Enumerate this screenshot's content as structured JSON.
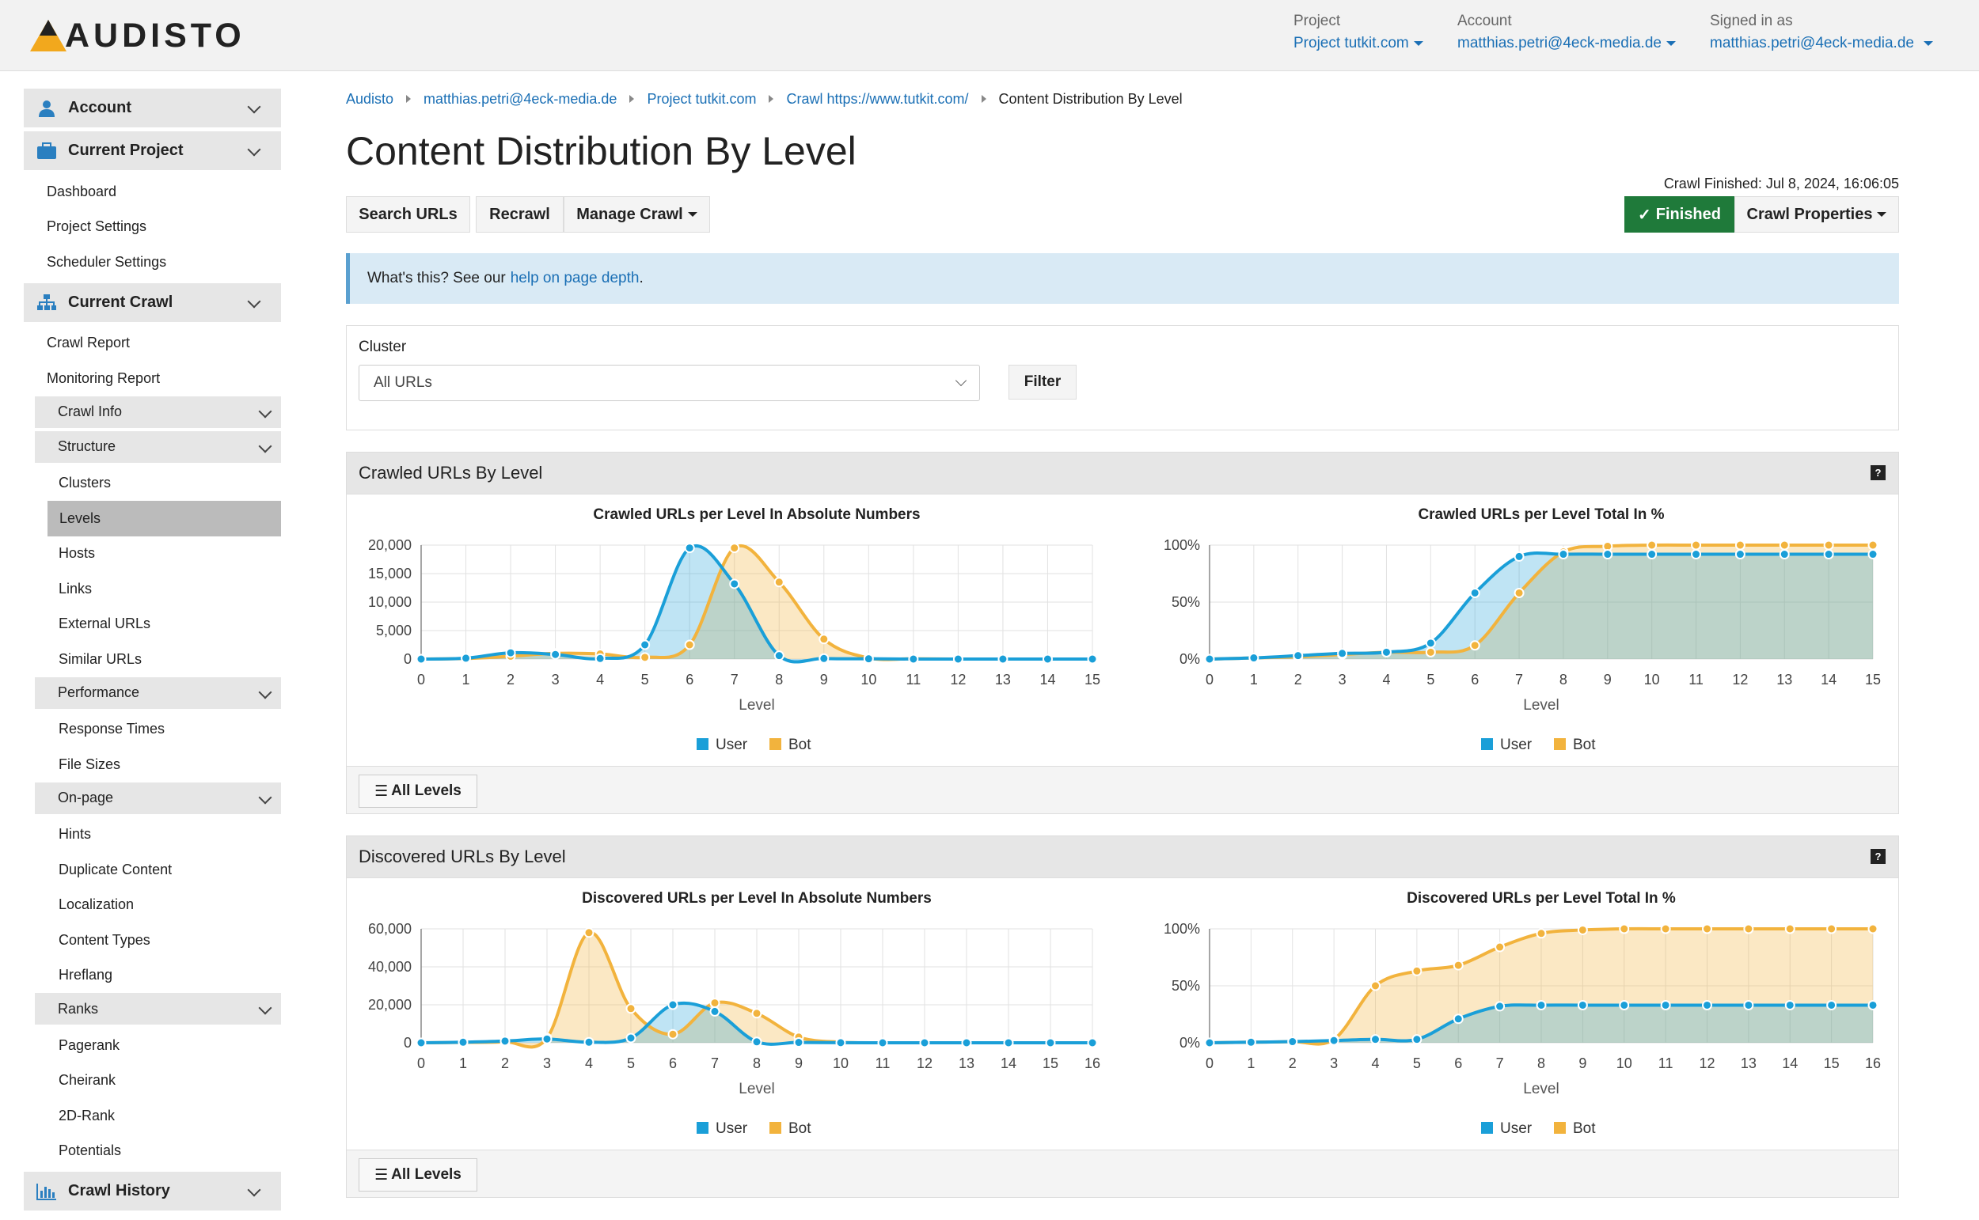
{
  "brand": {
    "name": "AUDISTO"
  },
  "topmenu": {
    "project_label": "Project",
    "project_value": "Project tutkit.com",
    "account_label": "Account",
    "account_value": "matthias.petri@4eck-media.de",
    "signed_label": "Signed in as",
    "signed_value": "matthias.petri@4eck-media.de"
  },
  "sidebar": {
    "account": "Account",
    "current_project": "Current Project",
    "project_items": [
      "Dashboard",
      "Project Settings",
      "Scheduler Settings"
    ],
    "current_crawl": "Current Crawl",
    "crawl_items": [
      "Crawl Report",
      "Monitoring Report"
    ],
    "crawl_info": "Crawl Info",
    "structure": "Structure",
    "structure_items": [
      "Clusters",
      "Levels",
      "Hosts",
      "Links",
      "External URLs",
      "Similar URLs"
    ],
    "performance": "Performance",
    "performance_items": [
      "Response Times",
      "File Sizes"
    ],
    "onpage": "On-page",
    "onpage_items": [
      "Hints",
      "Duplicate Content",
      "Localization",
      "Content Types",
      "Hreflang"
    ],
    "ranks": "Ranks",
    "ranks_items": [
      "Pagerank",
      "Cheirank",
      "2D-Rank",
      "Potentials"
    ],
    "crawl_history": "Crawl History"
  },
  "breadcrumb": [
    "Audisto",
    "matthias.petri@4eck-media.de",
    "Project tutkit.com",
    "Crawl https://www.tutkit.com/",
    "Content Distribution By Level"
  ],
  "page_title": "Content Distribution By Level",
  "crawl_finished": "Crawl Finished: Jul 8, 2024, 16:06:05",
  "toolbar": {
    "search": "Search URLs",
    "recrawl": "Recrawl",
    "manage": "Manage Crawl",
    "finished": "Finished",
    "properties": "Crawl Properties"
  },
  "alert": {
    "text": "What's this? See our",
    "link": "help on page depth",
    "end": "."
  },
  "filter": {
    "label": "Cluster",
    "value": "All URLs",
    "button": "Filter"
  },
  "panels": [
    {
      "title": "Crawled URLs By Level",
      "footer": "All Levels"
    },
    {
      "title": "Discovered URLs By Level",
      "footer": "All Levels"
    }
  ],
  "colors": {
    "user": "#1a9fd8",
    "bot": "#f2b33d",
    "green": "#1f7a3a",
    "link": "#1a6fb5"
  },
  "chart_data": [
    {
      "type": "area",
      "title": "Crawled URLs per Level In Absolute Numbers",
      "xlabel": "Level",
      "ylabel": "",
      "x": [
        0,
        1,
        2,
        3,
        4,
        5,
        6,
        7,
        8,
        9,
        10,
        11,
        12,
        13,
        14,
        15
      ],
      "ylim": [
        0,
        20000
      ],
      "yticks": [
        "0",
        "5,000",
        "10,000",
        "15,000",
        "20,000"
      ],
      "series": [
        {
          "name": "User",
          "values": [
            0,
            150,
            1100,
            800,
            100,
            2500,
            19500,
            13200,
            600,
            100,
            50,
            0,
            0,
            0,
            0,
            0
          ]
        },
        {
          "name": "Bot",
          "values": [
            0,
            100,
            500,
            1000,
            900,
            300,
            2500,
            19500,
            13500,
            3500,
            200,
            50,
            0,
            0,
            0,
            0
          ]
        }
      ]
    },
    {
      "type": "area",
      "title": "Crawled URLs per Level Total In %",
      "xlabel": "Level",
      "ylabel": "",
      "x": [
        0,
        1,
        2,
        3,
        4,
        5,
        6,
        7,
        8,
        9,
        10,
        11,
        12,
        13,
        14,
        15
      ],
      "ylim": [
        0,
        100
      ],
      "yticks": [
        "0%",
        "50%",
        "100%"
      ],
      "series": [
        {
          "name": "User",
          "values": [
            0,
            1,
            3,
            5,
            6,
            14,
            58,
            90,
            92,
            92,
            92,
            92,
            92,
            92,
            92,
            92
          ]
        },
        {
          "name": "Bot",
          "values": [
            0,
            1,
            2,
            4,
            6,
            6,
            12,
            58,
            94,
            99,
            100,
            100,
            100,
            100,
            100,
            100
          ]
        }
      ]
    },
    {
      "type": "area",
      "title": "Discovered URLs per Level In Absolute Numbers",
      "xlabel": "Level",
      "ylabel": "",
      "x": [
        0,
        1,
        2,
        3,
        4,
        5,
        6,
        7,
        8,
        9,
        10,
        11,
        12,
        13,
        14,
        15,
        16
      ],
      "ylim": [
        0,
        60000
      ],
      "yticks": [
        "0",
        "20,000",
        "40,000",
        "60,000"
      ],
      "series": [
        {
          "name": "User",
          "values": [
            0,
            300,
            900,
            2000,
            300,
            2500,
            20000,
            16500,
            500,
            200,
            50,
            0,
            0,
            0,
            0,
            0,
            0
          ]
        },
        {
          "name": "Bot",
          "values": [
            0,
            200,
            500,
            2500,
            58000,
            18000,
            4500,
            21000,
            15500,
            3000,
            300,
            0,
            0,
            0,
            0,
            0,
            0
          ]
        }
      ]
    },
    {
      "type": "area",
      "title": "Discovered URLs per Level Total In %",
      "xlabel": "Level",
      "ylabel": "",
      "x": [
        0,
        1,
        2,
        3,
        4,
        5,
        6,
        7,
        8,
        9,
        10,
        11,
        12,
        13,
        14,
        15,
        16
      ],
      "ylim": [
        0,
        100
      ],
      "yticks": [
        "0%",
        "50%",
        "100%"
      ],
      "series": [
        {
          "name": "User",
          "values": [
            0,
            0.5,
            1,
            2,
            3,
            3,
            21,
            32,
            33,
            33,
            33,
            33,
            33,
            33,
            33,
            33,
            33
          ]
        },
        {
          "name": "Bot",
          "values": [
            0,
            0.5,
            1,
            3,
            50,
            63,
            68,
            84,
            96,
            99,
            100,
            100,
            100,
            100,
            100,
            100,
            100
          ]
        }
      ]
    }
  ]
}
